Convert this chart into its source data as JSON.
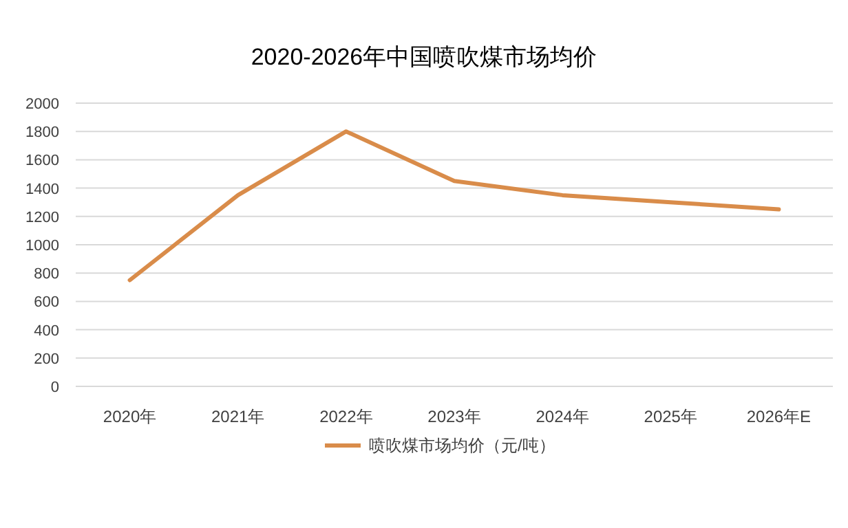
{
  "chart_data": {
    "type": "line",
    "title": "2020-2026年中国喷吹煤市场均价",
    "categories": [
      "2020年",
      "2021年",
      "2022年",
      "2023年",
      "2024年",
      "2025年",
      "2026年E"
    ],
    "series": [
      {
        "name": "喷吹煤市场均价（元/吨）",
        "color": "#d98c4a",
        "values": [
          750,
          1350,
          1800,
          1450,
          1350,
          1300,
          1250
        ]
      }
    ],
    "ylim": [
      0,
      2000
    ],
    "yticks": [
      0,
      200,
      400,
      600,
      800,
      1000,
      1200,
      1400,
      1600,
      1800,
      2000
    ],
    "grid": "y",
    "legend": "bottom",
    "marker": "none",
    "line_style": "solid"
  }
}
